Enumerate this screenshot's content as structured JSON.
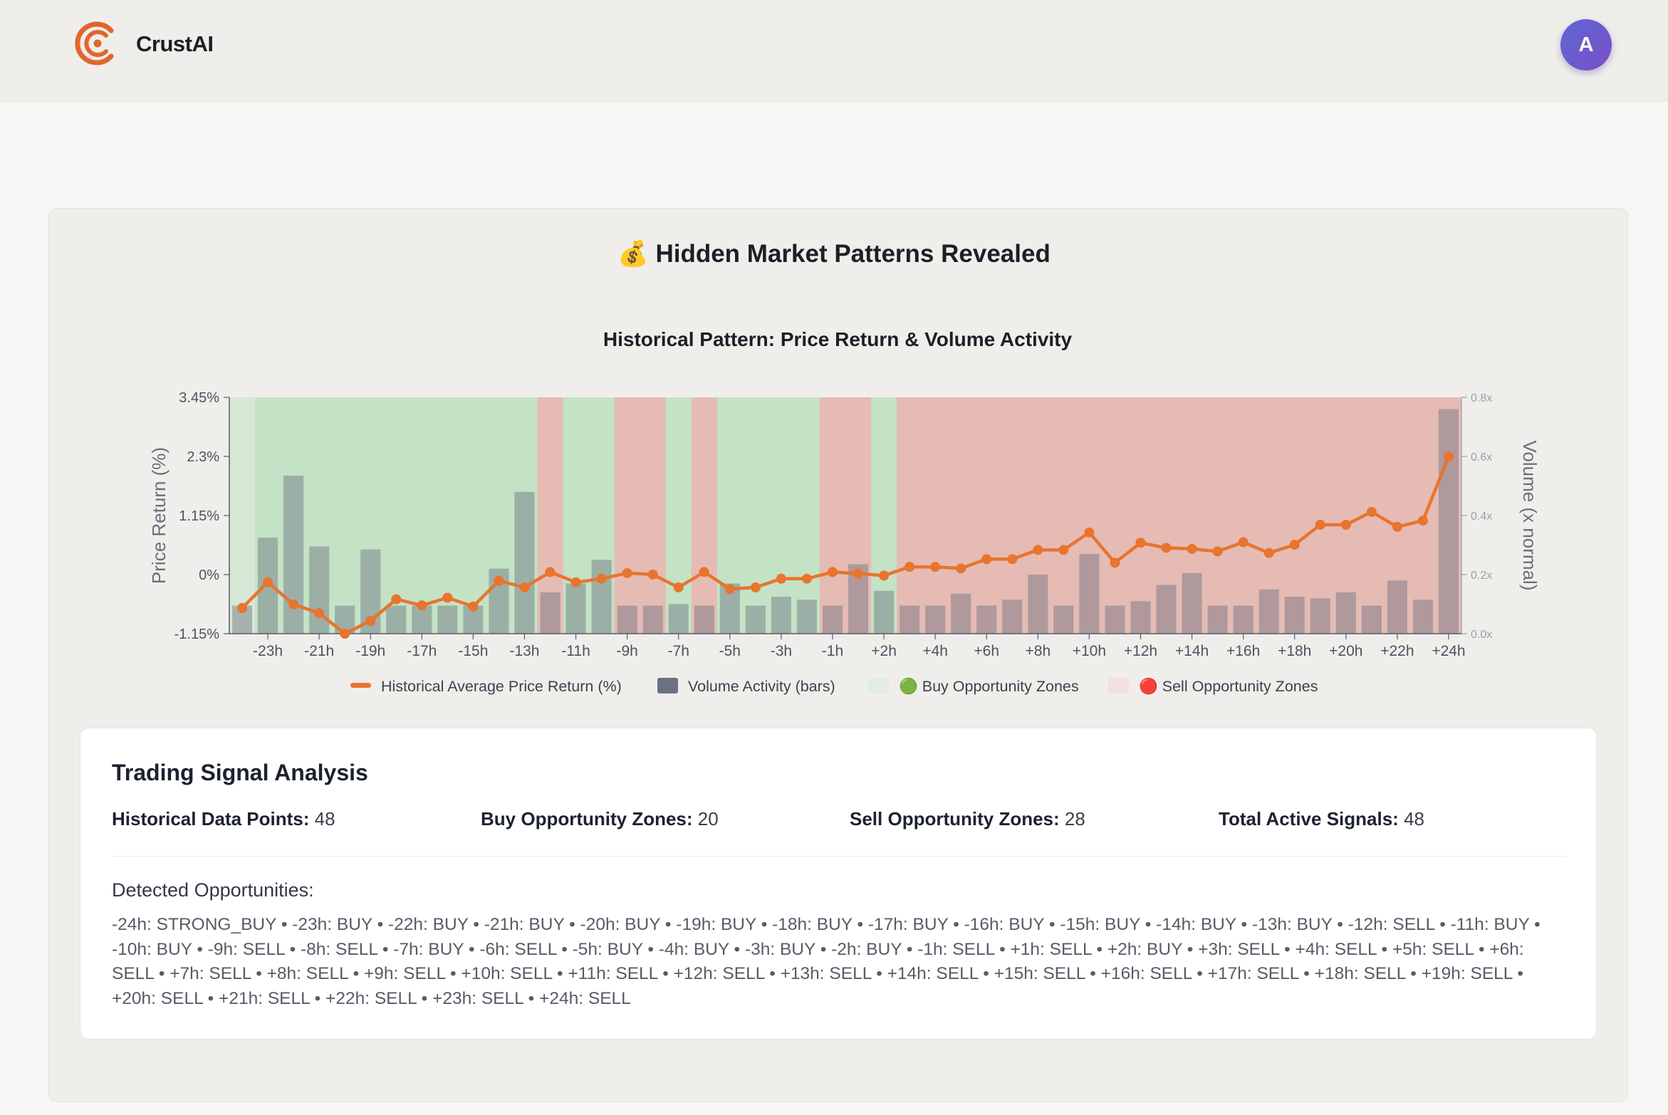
{
  "app": {
    "name": "CrustAI",
    "avatar_initial": "A"
  },
  "page": {
    "title": "💰 Hidden Market Patterns Revealed"
  },
  "chart_data": {
    "type": "bar+line",
    "title": "Historical Pattern: Price Return & Volume Activity",
    "ylabel": "Price Return (%)",
    "y2label": "Volume (x normal)",
    "ylim": [
      -1.15,
      3.45
    ],
    "y2lim": [
      0,
      0.8
    ],
    "yticks": [
      "3.45%",
      "2.3%",
      "1.15%",
      "0%",
      "-1.15%"
    ],
    "y2ticks": [
      "0.8x",
      "0.6x",
      "0.4x",
      "0.2x",
      "0.0x"
    ],
    "xticks": [
      "-23h",
      "-21h",
      "-19h",
      "-17h",
      "-15h",
      "-13h",
      "-11h",
      "-9h",
      "-7h",
      "-5h",
      "-3h",
      "-1h",
      "+2h",
      "+4h",
      "+6h",
      "+8h",
      "+10h",
      "+12h",
      "+14h",
      "+16h",
      "+18h",
      "+20h",
      "+22h",
      "+24h"
    ],
    "categories": [
      "-24h",
      "-23h",
      "-22h",
      "-21h",
      "-20h",
      "-19h",
      "-18h",
      "-17h",
      "-16h",
      "-15h",
      "-14h",
      "-13h",
      "-12h",
      "-11h",
      "-10h",
      "-9h",
      "-8h",
      "-7h",
      "-6h",
      "-5h",
      "-4h",
      "-3h",
      "-2h",
      "-1h",
      "+1h",
      "+2h",
      "+3h",
      "+4h",
      "+5h",
      "+6h",
      "+7h",
      "+8h",
      "+9h",
      "+10h",
      "+11h",
      "+12h",
      "+13h",
      "+14h",
      "+15h",
      "+16h",
      "+17h",
      "+18h",
      "+19h",
      "+20h",
      "+21h",
      "+22h",
      "+23h",
      "+24h"
    ],
    "series": [
      {
        "name": "Historical Average Price Return (%)",
        "kind": "line",
        "color": "#e8742e",
        "values": [
          -0.65,
          -0.15,
          -0.58,
          -0.75,
          -1.15,
          -0.9,
          -0.48,
          -0.6,
          -0.45,
          -0.62,
          -0.12,
          -0.25,
          0.05,
          -0.15,
          -0.08,
          0.03,
          0.0,
          -0.25,
          0.05,
          -0.28,
          -0.25,
          -0.08,
          -0.08,
          0.05,
          0.02,
          -0.02,
          0.15,
          0.15,
          0.12,
          0.3,
          0.3,
          0.48,
          0.48,
          0.82,
          0.23,
          0.62,
          0.52,
          0.5,
          0.45,
          0.63,
          0.42,
          0.58,
          0.97,
          0.97,
          1.22,
          0.93,
          1.05,
          2.3
        ]
      },
      {
        "name": "Volume Activity (bars)",
        "kind": "bar",
        "color": "#6d7080",
        "values": [
          0.095,
          0.325,
          0.535,
          0.295,
          0.095,
          0.285,
          0.095,
          0.095,
          0.095,
          0.095,
          0.22,
          0.48,
          0.14,
          0.17,
          0.25,
          0.095,
          0.095,
          0.1,
          0.095,
          0.17,
          0.095,
          0.125,
          0.115,
          0.095,
          0.235,
          0.145,
          0.095,
          0.095,
          0.135,
          0.095,
          0.115,
          0.2,
          0.095,
          0.27,
          0.095,
          0.11,
          0.165,
          0.205,
          0.095,
          0.095,
          0.15,
          0.125,
          0.12,
          0.14,
          0.095,
          0.18,
          0.115,
          0.76
        ]
      }
    ],
    "zones": [
      "STRONG_BUY",
      "BUY",
      "BUY",
      "BUY",
      "BUY",
      "BUY",
      "BUY",
      "BUY",
      "BUY",
      "BUY",
      "BUY",
      "BUY",
      "SELL",
      "BUY",
      "BUY",
      "SELL",
      "SELL",
      "BUY",
      "SELL",
      "BUY",
      "BUY",
      "BUY",
      "BUY",
      "SELL",
      "SELL",
      "BUY",
      "SELL",
      "SELL",
      "SELL",
      "SELL",
      "SELL",
      "SELL",
      "SELL",
      "SELL",
      "SELL",
      "SELL",
      "SELL",
      "SELL",
      "SELL",
      "SELL",
      "SELL",
      "SELL",
      "SELL",
      "SELL",
      "SELL",
      "SELL",
      "SELL",
      "SELL"
    ],
    "zone_colors": {
      "STRONG_BUY": "#d8e8d6",
      "BUY": "#c4e2c5",
      "SELL": "#e5bbb4"
    },
    "legend": [
      {
        "label": "Historical Average Price Return (%)",
        "swatch": "line",
        "color": "#e8742e"
      },
      {
        "label": "Volume Activity (bars)",
        "swatch": "box",
        "color": "#6d7080"
      },
      {
        "label": "🟢 Buy Opportunity Zones",
        "swatch": "box",
        "color": "#e3ece1"
      },
      {
        "label": "🔴 Sell Opportunity Zones",
        "swatch": "box",
        "color": "#f2e1dd"
      }
    ],
    "legend_position": "bottom-center",
    "grid": false
  },
  "analysis": {
    "title": "Trading Signal Analysis",
    "stats": [
      {
        "label": "Historical Data Points:",
        "value": "48"
      },
      {
        "label": "Buy Opportunity Zones:",
        "value": "20"
      },
      {
        "label": "Sell Opportunity Zones:",
        "value": "28"
      },
      {
        "label": "Total Active Signals:",
        "value": "48"
      }
    ],
    "detected_label": "Detected Opportunities:",
    "detected_text": "-24h: STRONG_BUY • -23h: BUY • -22h: BUY • -21h: BUY • -20h: BUY • -19h: BUY • -18h: BUY • -17h: BUY • -16h: BUY • -15h: BUY • -14h: BUY • -13h: BUY • -12h: SELL • -11h: BUY • -10h: BUY • -9h: SELL • -8h: SELL • -7h: BUY • -6h: SELL • -5h: BUY • -4h: BUY • -3h: BUY • -2h: BUY • -1h: SELL • +1h: SELL • +2h: BUY • +3h: SELL • +4h: SELL • +5h: SELL • +6h: SELL • +7h: SELL • +8h: SELL • +9h: SELL • +10h: SELL • +11h: SELL • +12h: SELL • +13h: SELL • +14h: SELL • +15h: SELL • +16h: SELL • +17h: SELL • +18h: SELL • +19h: SELL • +20h: SELL • +21h: SELL • +22h: SELL • +23h: SELL • +24h: SELL"
  }
}
